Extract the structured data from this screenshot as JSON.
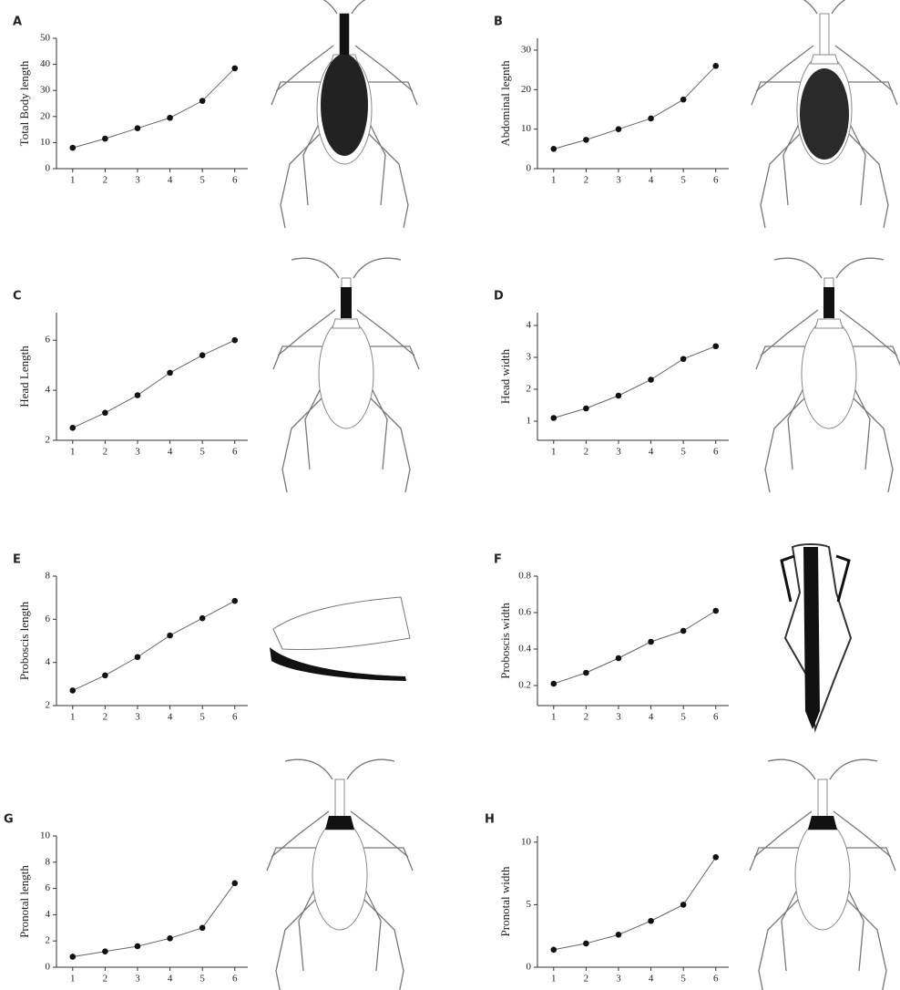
{
  "chart_data": [
    {
      "type": "line",
      "panel": "A",
      "ylabel": "Total Body length",
      "x": [
        1,
        2,
        3,
        4,
        5,
        6
      ],
      "values": [
        8,
        11.5,
        15.5,
        19.5,
        26,
        38.5
      ],
      "xlim": [
        0.5,
        6.4
      ],
      "xticks": [
        1,
        2,
        3,
        4,
        5,
        6
      ],
      "ylim": [
        0,
        50
      ],
      "yticks": [
        0,
        10,
        20,
        30,
        40,
        50
      ],
      "color": "#111111"
    },
    {
      "type": "line",
      "panel": "B",
      "ylabel": "Abdominal legnth",
      "x": [
        1,
        2,
        3,
        4,
        5,
        6
      ],
      "values": [
        5,
        7.3,
        10,
        12.7,
        17.5,
        26
      ],
      "xlim": [
        0.5,
        6.4
      ],
      "xticks": [
        1,
        2,
        3,
        4,
        5,
        6
      ],
      "ylim": [
        0,
        33
      ],
      "yticks": [
        0,
        10,
        20,
        30
      ],
      "color": "#111111"
    },
    {
      "type": "line",
      "panel": "C",
      "ylabel": "Head Length",
      "x": [
        1,
        2,
        3,
        4,
        5,
        6
      ],
      "values": [
        2.5,
        3.1,
        3.8,
        4.7,
        5.4,
        6.0
      ],
      "xlim": [
        0.5,
        6.4
      ],
      "xticks": [
        1,
        2,
        3,
        4,
        5,
        6
      ],
      "ylim": [
        2,
        7.1
      ],
      "yticks": [
        2,
        4,
        6
      ],
      "color": "#111111"
    },
    {
      "type": "line",
      "panel": "D",
      "ylabel": "Head width",
      "x": [
        1,
        2,
        3,
        4,
        5,
        6
      ],
      "values": [
        1.1,
        1.4,
        1.8,
        2.3,
        2.95,
        3.35
      ],
      "xlim": [
        0.5,
        6.4
      ],
      "xticks": [
        1,
        2,
        3,
        4,
        5,
        6
      ],
      "ylim": [
        0.4,
        4.4
      ],
      "yticks": [
        1,
        2,
        3,
        4
      ],
      "color": "#111111"
    },
    {
      "type": "line",
      "panel": "E",
      "ylabel": "Proboscis length",
      "x": [
        1,
        2,
        3,
        4,
        5,
        6
      ],
      "values": [
        2.7,
        3.4,
        4.25,
        5.25,
        6.05,
        6.85
      ],
      "xlim": [
        0.5,
        6.4
      ],
      "xticks": [
        1,
        2,
        3,
        4,
        5,
        6
      ],
      "ylim": [
        2,
        8
      ],
      "yticks": [
        2,
        4,
        6,
        8
      ],
      "color": "#111111"
    },
    {
      "type": "line",
      "panel": "F",
      "ylabel": "Proboscis width",
      "x": [
        1,
        2,
        3,
        4,
        5,
        6
      ],
      "values": [
        0.21,
        0.27,
        0.35,
        0.44,
        0.5,
        0.61
      ],
      "xlim": [
        0.5,
        6.4
      ],
      "xticks": [
        1,
        2,
        3,
        4,
        5,
        6
      ],
      "ylim": [
        0.09,
        0.8
      ],
      "yticks": [
        0.2,
        0.4,
        0.6,
        0.8
      ],
      "color": "#111111"
    },
    {
      "type": "line",
      "panel": "G",
      "ylabel": "Pronotal length",
      "x": [
        1,
        2,
        3,
        4,
        5,
        6
      ],
      "values": [
        0.8,
        1.2,
        1.6,
        2.2,
        3.0,
        6.4
      ],
      "xlim": [
        0.5,
        6.4
      ],
      "xticks": [
        1,
        2,
        3,
        4,
        5,
        6
      ],
      "ylim": [
        0,
        10
      ],
      "yticks": [
        0,
        2,
        4,
        6,
        8,
        10
      ],
      "color": "#111111"
    },
    {
      "type": "line",
      "panel": "H",
      "ylabel": "Pronotal width",
      "x": [
        1,
        2,
        3,
        4,
        5,
        6
      ],
      "values": [
        1.4,
        1.9,
        2.6,
        3.7,
        5.0,
        8.8
      ],
      "xlim": [
        0.5,
        6.4
      ],
      "xticks": [
        1,
        2,
        3,
        4,
        5,
        6
      ],
      "ylim": [
        0,
        10.5
      ],
      "yticks": [
        0,
        5,
        10
      ],
      "color": "#111111"
    }
  ]
}
